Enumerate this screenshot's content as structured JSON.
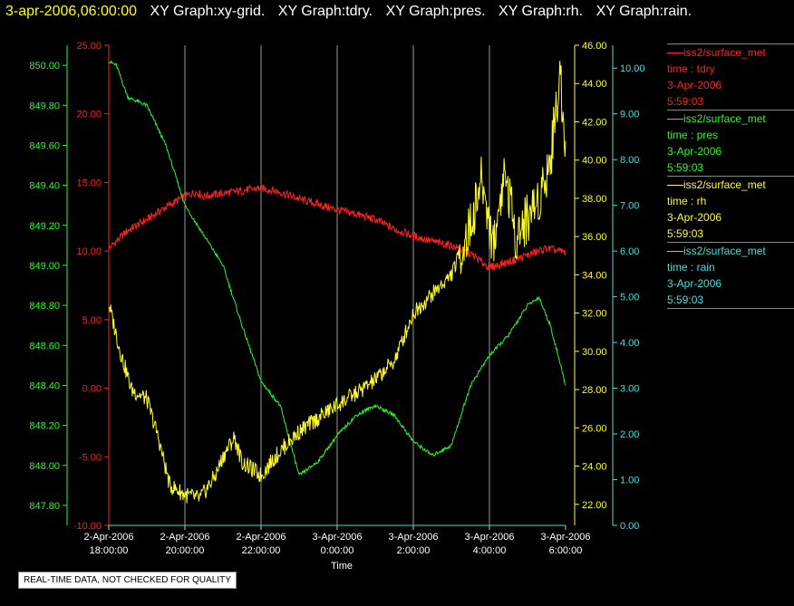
{
  "header": {
    "timestamp": "3-apr-2006,06:00:00",
    "graph_titles": [
      "XY Graph:xy-grid.",
      "XY Graph:tdry.",
      "XY Graph:pres.",
      "XY Graph:rh.",
      "XY Graph:rain."
    ]
  },
  "notice": "REAL-TIME DATA, NOT CHECKED FOR QUALITY",
  "legend": [
    {
      "source": "iss2/surface_met",
      "line1": "time : tdry",
      "line2": "3-Apr-2006",
      "line3": "5:59:03",
      "color": "#ff2020"
    },
    {
      "source": "iss2/surface_met",
      "line1": "time : pres",
      "line2": "3-Apr-2006",
      "line3": "5:59:03",
      "color": "#20ff20"
    },
    {
      "source": "iss2/surface_met",
      "line1": "time : rh",
      "line2": "3-Apr-2006",
      "line3": "5:59:03",
      "color": "#ffff20"
    },
    {
      "source": "iss2/surface_met",
      "line1": "time : rain",
      "line2": "3-Apr-2006",
      "line3": "5:59:03",
      "color": "#40e0e0"
    }
  ],
  "chart_data": {
    "type": "line",
    "xlabel": "Time",
    "x_ticks": [
      [
        "2-Apr-2006",
        "18:00:00"
      ],
      [
        "2-Apr-2006",
        "20:00:00"
      ],
      [
        "2-Apr-2006",
        "22:00:00"
      ],
      [
        "3-Apr-2006",
        "0:00:00"
      ],
      [
        "3-Apr-2006",
        "2:00:00"
      ],
      [
        "3-Apr-2006",
        "4:00:00"
      ],
      [
        "3-Apr-2006",
        "6:00:00"
      ]
    ],
    "xlim_hours": [
      0,
      12
    ],
    "grid": "vertical",
    "axes": {
      "tdry": {
        "color": "#ff2020",
        "ylim": [
          -10,
          25
        ],
        "ticks": [
          "25.00",
          "20.00",
          "15.00",
          "10.00",
          "5.00",
          "0.00",
          "-5.00",
          "-10.00"
        ]
      },
      "pres": {
        "color": "#20ff20",
        "ylim": [
          847.7,
          850.1
        ],
        "ticks": [
          "850.00",
          "849.80",
          "849.60",
          "849.40",
          "849.20",
          "849.00",
          "848.80",
          "848.60",
          "848.40",
          "848.20",
          "848.00",
          "847.80"
        ]
      },
      "rh": {
        "color": "#ffff20",
        "ylim": [
          20.9,
          46.0
        ],
        "ticks": [
          "46.00",
          "44.00",
          "42.00",
          "40.00",
          "38.00",
          "36.00",
          "34.00",
          "32.00",
          "30.00",
          "28.00",
          "26.00",
          "24.00",
          "22.00"
        ]
      },
      "rain": {
        "color": "#40e0e0",
        "ylim": [
          0,
          10.5
        ],
        "ticks": [
          "10.00",
          "9.00",
          "8.00",
          "7.00",
          "6.00",
          "5.00",
          "4.00",
          "3.00",
          "2.00",
          "1.00",
          "0.00"
        ]
      }
    },
    "series": [
      {
        "name": "tdry",
        "axis": "tdry",
        "points": [
          [
            0,
            10.2
          ],
          [
            0.5,
            11.5
          ],
          [
            1,
            12.3
          ],
          [
            1.5,
            13.2
          ],
          [
            2,
            14.0
          ],
          [
            2.3,
            14.3
          ],
          [
            2.5,
            14.0
          ],
          [
            3,
            14.2
          ],
          [
            3.5,
            14.4
          ],
          [
            4,
            14.6
          ],
          [
            4.5,
            14.3
          ],
          [
            5,
            13.8
          ],
          [
            5.5,
            13.4
          ],
          [
            6,
            13.0
          ],
          [
            6.5,
            12.7
          ],
          [
            7,
            12.3
          ],
          [
            7.5,
            11.6
          ],
          [
            8,
            11.1
          ],
          [
            8.5,
            10.7
          ],
          [
            9,
            10.4
          ],
          [
            9.5,
            9.8
          ],
          [
            10,
            8.8
          ],
          [
            10.5,
            9.2
          ],
          [
            11,
            9.7
          ],
          [
            11.5,
            10.2
          ],
          [
            12,
            9.9
          ]
        ]
      },
      {
        "name": "pres",
        "axis": "pres",
        "points": [
          [
            0,
            850.02
          ],
          [
            0.2,
            850.0
          ],
          [
            0.5,
            849.84
          ],
          [
            1,
            849.8
          ],
          [
            1.5,
            849.6
          ],
          [
            2,
            849.3
          ],
          [
            2.5,
            849.15
          ],
          [
            3,
            849.0
          ],
          [
            3.5,
            848.7
          ],
          [
            4,
            848.42
          ],
          [
            4.5,
            848.3
          ],
          [
            5,
            847.95
          ],
          [
            5.5,
            848.02
          ],
          [
            6,
            848.15
          ],
          [
            6.5,
            848.25
          ],
          [
            7,
            848.3
          ],
          [
            7.5,
            848.25
          ],
          [
            8,
            848.12
          ],
          [
            8.5,
            848.05
          ],
          [
            9,
            848.1
          ],
          [
            9.5,
            848.4
          ],
          [
            10,
            848.55
          ],
          [
            10.5,
            848.65
          ],
          [
            11,
            848.8
          ],
          [
            11.3,
            848.84
          ],
          [
            11.6,
            848.7
          ],
          [
            12,
            848.4
          ]
        ]
      },
      {
        "name": "rh",
        "axis": "rh",
        "points": [
          [
            0,
            32.5
          ],
          [
            0.3,
            30.0
          ],
          [
            0.6,
            28.0
          ],
          [
            1,
            27.5
          ],
          [
            1.3,
            25.5
          ],
          [
            1.6,
            23.0
          ],
          [
            2,
            22.5
          ],
          [
            2.4,
            22.3
          ],
          [
            2.8,
            23.5
          ],
          [
            3,
            24.5
          ],
          [
            3.3,
            25.5
          ],
          [
            3.5,
            24.2
          ],
          [
            4,
            23.5
          ],
          [
            4.3,
            24.3
          ],
          [
            4.6,
            25.0
          ],
          [
            5,
            25.8
          ],
          [
            5.5,
            26.5
          ],
          [
            6,
            27.2
          ],
          [
            6.5,
            27.8
          ],
          [
            7,
            28.5
          ],
          [
            7.5,
            29.5
          ],
          [
            8,
            32.0
          ],
          [
            8.5,
            33.0
          ],
          [
            9,
            34.0
          ],
          [
            9.5,
            36.5
          ],
          [
            9.8,
            39.0
          ],
          [
            10.1,
            35.5
          ],
          [
            10.4,
            39.5
          ],
          [
            10.7,
            36.0
          ],
          [
            11,
            37.0
          ],
          [
            11.3,
            38.0
          ],
          [
            11.6,
            40.0
          ],
          [
            11.85,
            44.5
          ],
          [
            12,
            41.0
          ]
        ]
      },
      {
        "name": "rain",
        "axis": "rain",
        "points": [
          [
            0,
            0.0
          ],
          [
            12,
            0.0
          ]
        ]
      }
    ]
  }
}
